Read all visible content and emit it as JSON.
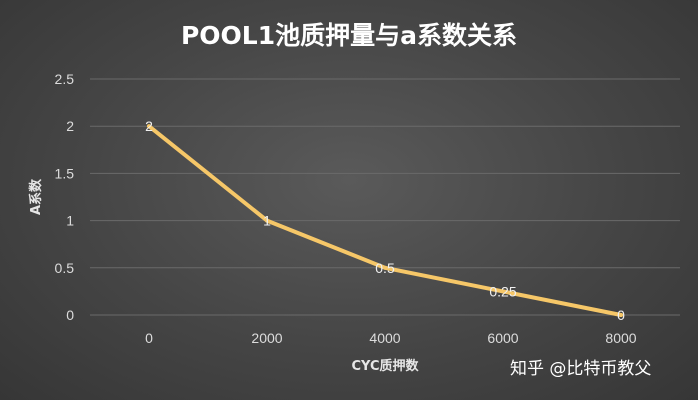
{
  "chart_data": {
    "type": "line",
    "title": "POOL1池质押量与a系数关系",
    "xlabel": "CYC质押数",
    "ylabel": "A系数",
    "categories": [
      "0",
      "2000",
      "4000",
      "6000",
      "8000"
    ],
    "x": [
      0,
      2000,
      4000,
      6000,
      8000
    ],
    "series": [
      {
        "name": "A系数",
        "values": [
          2,
          1,
          0.5,
          0.25,
          0
        ]
      }
    ],
    "data_labels": [
      "2",
      "1",
      "0.5",
      "0.25",
      "0"
    ],
    "ylim": [
      0,
      2.5
    ],
    "yticks": [
      0,
      0.5,
      1,
      1.5,
      2,
      2.5
    ],
    "ytick_labels": [
      "0",
      "0.5",
      "1",
      "1.5",
      "2",
      "2.5"
    ],
    "grid": true,
    "legend": "none"
  },
  "colors": {
    "line": "#f6c768",
    "grid": "#6a6a6a"
  },
  "watermark": "知乎 @比特币教父"
}
